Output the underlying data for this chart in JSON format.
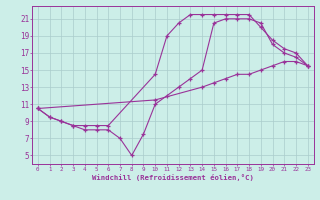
{
  "xlabel": "Windchill (Refroidissement éolien,°C)",
  "bg_color": "#cceee8",
  "grid_color": "#aacccc",
  "line_color": "#993399",
  "xlim": [
    -0.5,
    23.5
  ],
  "ylim": [
    4,
    22.5
  ],
  "xticks": [
    0,
    1,
    2,
    3,
    4,
    5,
    6,
    7,
    8,
    9,
    10,
    11,
    12,
    13,
    14,
    15,
    16,
    17,
    18,
    19,
    20,
    21,
    22,
    23
  ],
  "yticks": [
    5,
    7,
    9,
    11,
    13,
    15,
    17,
    19,
    21
  ],
  "line1_x": [
    0,
    1,
    2,
    3,
    4,
    5,
    6,
    7,
    8,
    9,
    10,
    11,
    12,
    13,
    14,
    15,
    16,
    17,
    18,
    19,
    20,
    21,
    22,
    23
  ],
  "line1_y": [
    10.5,
    9.5,
    9.0,
    8.5,
    8.0,
    8.0,
    8.0,
    7.0,
    5.0,
    7.5,
    11.0,
    12.0,
    13.0,
    14.0,
    15.0,
    20.5,
    21.0,
    21.0,
    21.0,
    20.5,
    18.0,
    17.0,
    16.5,
    15.5
  ],
  "line2_x": [
    0,
    1,
    2,
    3,
    4,
    5,
    6,
    10,
    11,
    12,
    13,
    14,
    15,
    16,
    17,
    18,
    19,
    20,
    21,
    22,
    23
  ],
  "line2_y": [
    10.5,
    9.5,
    9.0,
    8.5,
    8.5,
    8.5,
    8.5,
    14.5,
    19.0,
    20.5,
    21.5,
    21.5,
    21.5,
    21.5,
    21.5,
    21.5,
    20.0,
    18.5,
    17.5,
    17.0,
    15.5
  ],
  "line3_x": [
    0,
    10,
    14,
    15,
    16,
    17,
    18,
    19,
    20,
    21,
    22,
    23
  ],
  "line3_y": [
    10.5,
    11.5,
    13.0,
    13.5,
    14.0,
    14.5,
    14.5,
    15.0,
    15.5,
    16.0,
    16.0,
    15.5
  ]
}
